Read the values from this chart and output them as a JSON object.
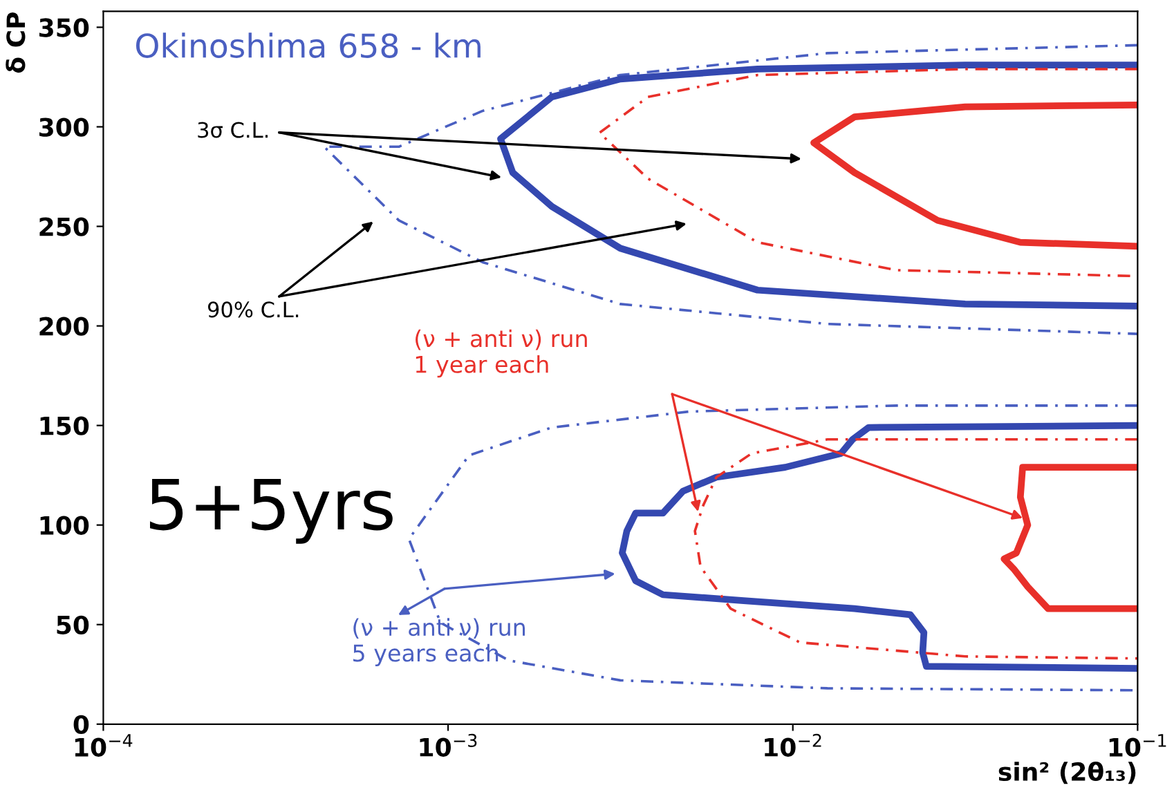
{
  "chart_data": {
    "type": "line",
    "title": "Okinoshima 658 - km",
    "xlabel": "sin² (2θ₁₃)",
    "ylabel": "δ CP",
    "log": "x",
    "xlim": [
      0.0001,
      0.1
    ],
    "ylim": [
      0,
      358
    ],
    "xticks": [
      {
        "value": 0.0001,
        "label": "10$^{−4}$"
      },
      {
        "value": 0.001,
        "label": "10$^{−3}$"
      },
      {
        "value": 0.01,
        "label": "10$^{−2}$"
      },
      {
        "value": 0.1,
        "label": "10$^{−1}$"
      }
    ],
    "yticks": [
      0,
      50,
      100,
      150,
      200,
      250,
      300,
      350
    ],
    "grid": false,
    "legend": false,
    "marker": "none",
    "series": [
      {
        "color": "#4a5fc1",
        "line_style": "dashed",
        "x": [
          0.1,
          0.0126,
          0.00316,
          0.00126,
          0.00072,
          0.000437,
          0.00072,
          0.00126,
          0.00316,
          0.0126,
          0.1
        ],
        "values": [
          341,
          337,
          326,
          308,
          290,
          290,
          253,
          232,
          211,
          201,
          196
        ]
      },
      {
        "color": "#3448b0",
        "line_style": "solid",
        "x": [
          0.1,
          0.0316,
          0.0079,
          0.00316,
          0.002,
          0.00142,
          0.00154,
          0.002,
          0.00316,
          0.0079,
          0.0316,
          0.1
        ],
        "values": [
          331,
          331,
          329,
          324,
          315,
          294,
          277,
          260,
          239,
          218,
          211,
          210
        ]
      },
      {
        "color": "#e8302a",
        "line_style": "dashed",
        "x": [
          0.1,
          0.0316,
          0.0079,
          0.0038,
          0.00275,
          0.0038,
          0.0079,
          0.02,
          0.1
        ],
        "values": [
          329,
          329,
          326,
          315,
          297,
          274,
          242,
          228,
          225
        ]
      },
      {
        "color": "#e8302a",
        "line_style": "solid",
        "x": [
          0.1,
          0.0316,
          0.0151,
          0.0115,
          0.0151,
          0.0263,
          0.0457,
          0.1
        ],
        "values": [
          311,
          310,
          305,
          292,
          277,
          253,
          242,
          240
        ]
      },
      {
        "color": "#4a5fc1",
        "line_style": "dashed",
        "x": [
          0.1,
          0.02,
          0.005,
          0.002,
          0.00115,
          0.00077,
          0.00095,
          0.0015,
          0.00316,
          0.0126,
          0.1
        ],
        "values": [
          160,
          160,
          157,
          149,
          135,
          93,
          51,
          32,
          22,
          18,
          17
        ]
      },
      {
        "color": "#3448b0",
        "line_style": "solid",
        "x": [
          0.1,
          0.0166,
          0.0149,
          0.0138,
          0.0095,
          0.006,
          0.0048,
          0.0042,
          0.0035,
          0.0033,
          0.0032,
          0.0035,
          0.0042,
          0.0072,
          0.0151,
          0.0219,
          0.024,
          0.0238,
          0.0244,
          0.1
        ],
        "values": [
          150,
          149,
          143,
          136,
          129,
          124,
          117,
          106,
          106,
          97,
          86,
          72,
          65,
          62,
          58,
          55,
          46,
          36,
          29,
          28
        ]
      },
      {
        "color": "#e8302a",
        "line_style": "dashed",
        "x": [
          0.1,
          0.0126,
          0.0076,
          0.006,
          0.0055,
          0.0052,
          0.0054,
          0.0066,
          0.0105,
          0.0316,
          0.1
        ],
        "values": [
          143,
          143,
          136,
          124,
          110,
          97,
          79,
          58,
          41,
          34,
          33
        ]
      },
      {
        "color": "#e8302a",
        "line_style": "solid",
        "x": [
          0.1,
          0.0464,
          0.0457,
          0.048,
          0.0445,
          0.041,
          0.0437,
          0.048,
          0.055,
          0.1
        ],
        "values": [
          129,
          129,
          114,
          100,
          86,
          83,
          78,
          69,
          58,
          58
        ]
      }
    ],
    "annotations": [
      "3σ C.L.",
      "90% C.L.",
      "(ν + anti ν) run\n1 year each",
      "5+5yrs",
      "(ν + anti ν) run\n5 years each"
    ]
  }
}
